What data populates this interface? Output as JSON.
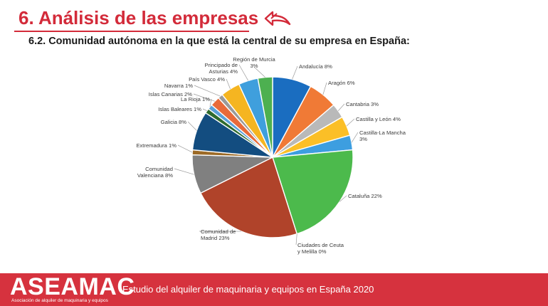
{
  "header": {
    "title": "6. Análisis de las empresas",
    "subtitle": "6.2. Comunidad autónoma en la que está la central de su empresa en España:"
  },
  "footer": {
    "logo": "ASEAMAC",
    "logo_subtitle": "Asociación de alquiler de maquinaria y equipos",
    "text": "Estudio del alquiler de maquinaria y equipos en España 2020",
    "color": "#d6323e"
  },
  "icons": {
    "back": "back-arrow-icon"
  },
  "chart_data": {
    "type": "pie",
    "title": "",
    "slices": [
      {
        "label": [
          "Andalucía 8%"
        ],
        "value": 8,
        "color": "#1a6dc0"
      },
      {
        "label": [
          "Aragón 6%"
        ],
        "value": 6,
        "color": "#f07a36"
      },
      {
        "label": [
          "Cantabria 3%"
        ],
        "value": 3,
        "color": "#b9b9b9"
      },
      {
        "label": [
          "Castilla y León 4%"
        ],
        "value": 4,
        "color": "#fbbf27"
      },
      {
        "label": [
          "Castilla-La Mancha",
          "3%"
        ],
        "value": 3,
        "color": "#3d9ee0"
      },
      {
        "label": [
          "Cataluña 22%"
        ],
        "value": 22,
        "color": "#4cba4c"
      },
      {
        "label": [
          "Ciudades de Ceuta",
          "y Melilla 0%"
        ],
        "value": 0,
        "color": "#2b4f8a"
      },
      {
        "label": [
          "Comunidad de",
          "Madrid 23%"
        ],
        "value": 23,
        "color": "#b0432a"
      },
      {
        "label": [
          "Comunidad",
          "Valenciana 8%"
        ],
        "value": 8,
        "color": "#808080"
      },
      {
        "label": [
          "Extremadura 1%"
        ],
        "value": 1,
        "color": "#9c6a26"
      },
      {
        "label": [
          "Galicia 8%"
        ],
        "value": 8,
        "color": "#134d80"
      },
      {
        "label": [
          "Islas Baleares 1%"
        ],
        "value": 1,
        "color": "#2f6b2e"
      },
      {
        "label": [
          "La Rioja 1%"
        ],
        "value": 1,
        "color": "#5aa0d8"
      },
      {
        "label": [
          "Islas Canarias 2%"
        ],
        "value": 2,
        "color": "#e86a3a"
      },
      {
        "label": [
          "Navarra 1%"
        ],
        "value": 1,
        "color": "#9a9a9a"
      },
      {
        "label": [
          "País Vasco 4%"
        ],
        "value": 4,
        "color": "#f5b521"
      },
      {
        "label": [
          "Principado de",
          "Asturias 4%"
        ],
        "value": 4,
        "color": "#3f9fdd"
      },
      {
        "label": [
          "Región de Murcia",
          "3%"
        ],
        "value": 3,
        "color": "#4db050"
      }
    ]
  }
}
